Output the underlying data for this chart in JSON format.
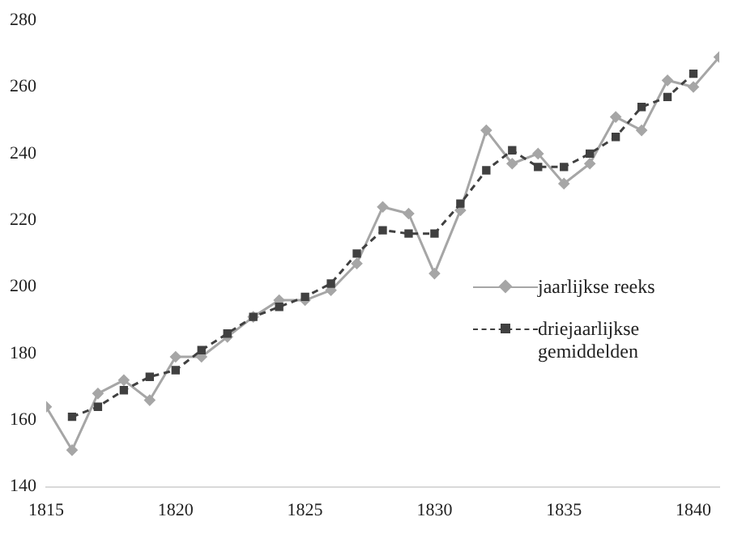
{
  "chart_data": {
    "type": "line",
    "x": [
      1815,
      1816,
      1817,
      1818,
      1819,
      1820,
      1821,
      1822,
      1823,
      1824,
      1825,
      1826,
      1827,
      1828,
      1829,
      1830,
      1831,
      1832,
      1833,
      1834,
      1835,
      1836,
      1837,
      1838,
      1839,
      1840,
      1841
    ],
    "series": [
      {
        "name": "jaarlijkse reeks",
        "color": "#a6a6a6",
        "marker": "diamond",
        "line_style": "solid",
        "values": [
          164,
          151,
          168,
          172,
          166,
          179,
          179,
          185,
          191,
          196,
          196,
          199,
          207,
          224,
          222,
          204,
          223,
          247,
          237,
          240,
          231,
          237,
          251,
          247,
          262,
          260,
          269
        ]
      },
      {
        "name": "driejaarlijkse gemiddelden",
        "color": "#404040",
        "marker": "square",
        "line_style": "dashed",
        "values": [
          null,
          161,
          164,
          169,
          173,
          175,
          181,
          186,
          191,
          194,
          197,
          201,
          210,
          217,
          216,
          216,
          225,
          235,
          241,
          236,
          236,
          240,
          245,
          254,
          257,
          264,
          null
        ]
      }
    ],
    "xlim": [
      1815,
      1841
    ],
    "xticks": [
      1815,
      1820,
      1825,
      1830,
      1835,
      1840
    ],
    "ylim": [
      140,
      280
    ],
    "yticks": [
      140,
      160,
      180,
      200,
      220,
      240,
      260,
      280
    ],
    "grid": false,
    "legend": "bottom right"
  }
}
